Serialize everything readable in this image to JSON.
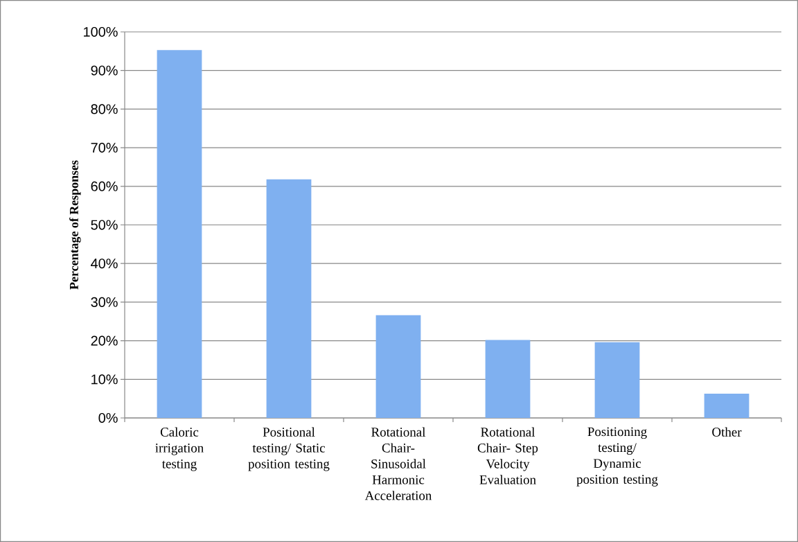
{
  "chart_data": {
    "type": "bar",
    "ylabel": "Percentage of Responses",
    "categories": [
      "Caloric irrigation testing",
      "Positional testing/ Static position testing",
      "Rotational Chair- Sinusoidal Harmonic Acceleration",
      "Rotational Chair- Step Velocity Evaluation",
      "Positioning testing/ Dynamic position testing",
      "Other"
    ],
    "values": [
      95.3,
      61.8,
      26.6,
      20.2,
      19.6,
      6.3
    ],
    "color": "#7fb0f0",
    "ylim": [
      0,
      100
    ],
    "yticks": [
      {
        "value": 0,
        "label": "0%"
      },
      {
        "value": 10,
        "label": "10%"
      },
      {
        "value": 20,
        "label": "20%"
      },
      {
        "value": 30,
        "label": "30%"
      },
      {
        "value": 40,
        "label": "40%"
      },
      {
        "value": 50,
        "label": "50%"
      },
      {
        "value": 60,
        "label": "60%"
      },
      {
        "value": 70,
        "label": "70%"
      },
      {
        "value": 80,
        "label": "80%"
      },
      {
        "value": 90,
        "label": "90%"
      },
      {
        "value": 100,
        "label": "100%"
      }
    ],
    "grid": "y"
  }
}
